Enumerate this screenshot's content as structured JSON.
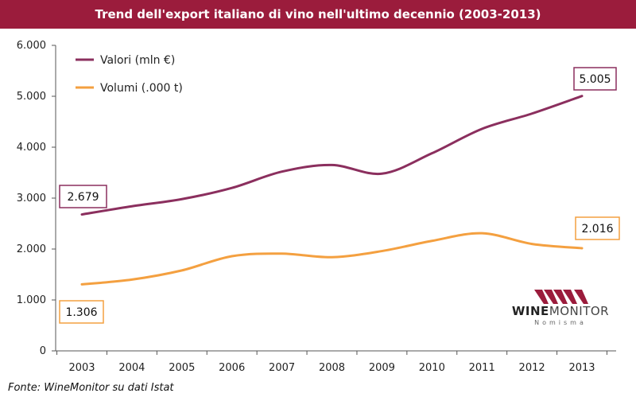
{
  "title": "Trend dell'export italiano di vino nell'ultimo decennio (2003-2013)",
  "source": "Fonte: WineMonitor su dati Istat",
  "logo": {
    "name_bold": "WINE",
    "name_rest": "MONITOR",
    "sub": "Nomisma"
  },
  "colors": {
    "brand": "#9b1c3c",
    "valori": "#8b2f5e",
    "volumi": "#f4a040"
  },
  "chart_data": {
    "type": "line",
    "x": [
      "2003",
      "2004",
      "2005",
      "2006",
      "2007",
      "2008",
      "2009",
      "2010",
      "2011",
      "2012",
      "2013"
    ],
    "series": [
      {
        "name": "Valori (mln €)",
        "values": [
          2679,
          2840,
          2980,
          3200,
          3520,
          3650,
          3480,
          3880,
          4360,
          4660,
          5005
        ]
      },
      {
        "name": "Volumi (.000 t)",
        "values": [
          1306,
          1400,
          1580,
          1860,
          1910,
          1840,
          1960,
          2160,
          2310,
          2100,
          2016
        ]
      }
    ],
    "ylim": [
      0,
      6000
    ],
    "yticks": [
      "0",
      "1.000",
      "2.000",
      "3.000",
      "4.000",
      "5.000",
      "6.000"
    ],
    "grid": false,
    "legend": "top-left",
    "data_labels": {
      "valori_start": "2.679",
      "valori_end": "5.005",
      "volumi_start": "1.306",
      "volumi_end": "2.016"
    }
  }
}
